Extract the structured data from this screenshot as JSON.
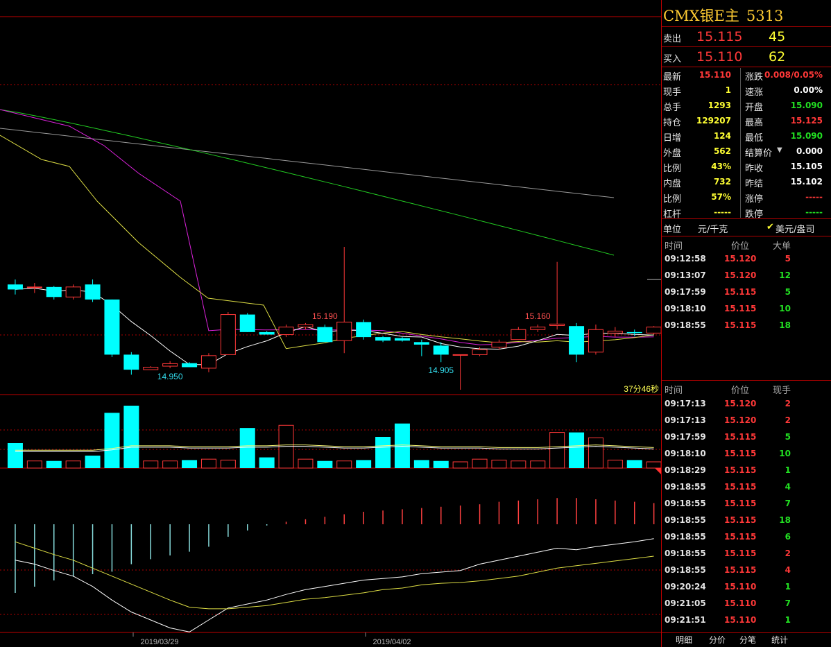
{
  "header": {
    "title": "CMX银E主",
    "code": "5313"
  },
  "quote": {
    "sell": {
      "label": "卖出",
      "price": "15.115",
      "volume": "45"
    },
    "buy": {
      "label": "买入",
      "price": "15.110",
      "volume": "62"
    }
  },
  "stats_left": [
    {
      "label": "最新",
      "value": "15.110",
      "color": "red"
    },
    {
      "label": "现手",
      "value": "1",
      "color": "yel"
    },
    {
      "label": "总手",
      "value": "1293",
      "color": "yel"
    },
    {
      "label": "持仓",
      "value": "129207",
      "color": "yel"
    },
    {
      "label": "日增",
      "value": "124",
      "color": "yel"
    },
    {
      "label": "外盘",
      "value": "562",
      "color": "yel"
    },
    {
      "label": "比例",
      "value": "43%",
      "color": "yel"
    },
    {
      "label": "内盘",
      "value": "732",
      "color": "yel"
    },
    {
      "label": "比例",
      "value": "57%",
      "color": "yel"
    },
    {
      "label": "杠杆",
      "value": "-----",
      "color": "yel"
    }
  ],
  "stats_right": [
    {
      "label": "涨跌",
      "value": "0.008/0.05%",
      "color": "red"
    },
    {
      "label": "速涨",
      "value": "0.00%",
      "color": "wht"
    },
    {
      "label": "开盘",
      "value": "15.090",
      "color": "grn"
    },
    {
      "label": "最高",
      "value": "15.125",
      "color": "red"
    },
    {
      "label": "最低",
      "value": "15.090",
      "color": "grn"
    },
    {
      "label": "结算价",
      "value": "0.000",
      "color": "wht"
    },
    {
      "label": "昨收",
      "value": "15.105",
      "color": "wht"
    },
    {
      "label": "昨结",
      "value": "15.102",
      "color": "wht"
    },
    {
      "label": "涨停",
      "value": "-----",
      "color": "red"
    },
    {
      "label": "跌停",
      "value": "-----",
      "color": "grn"
    }
  ],
  "unit": {
    "label": "单位",
    "option1": "元/千克",
    "option2": "美元/盎司",
    "check": "✔"
  },
  "big_orders": {
    "headers": {
      "time": "时间",
      "price": "价位",
      "vol": "大单"
    },
    "rows": [
      {
        "time": "09:12:58",
        "price": "15.120",
        "vol": "5",
        "color": "red"
      },
      {
        "time": "09:13:07",
        "price": "15.120",
        "vol": "12",
        "color": "grn"
      },
      {
        "time": "09:17:59",
        "price": "15.115",
        "vol": "5",
        "color": "grn"
      },
      {
        "time": "09:18:10",
        "price": "15.115",
        "vol": "10",
        "color": "grn"
      },
      {
        "time": "09:18:55",
        "price": "15.115",
        "vol": "18",
        "color": "grn"
      }
    ]
  },
  "ticks": {
    "headers": {
      "time": "时间",
      "price": "价位",
      "vol": "现手"
    },
    "rows": [
      {
        "time": "09:17:13",
        "price": "15.120",
        "vol": "2",
        "color": "red"
      },
      {
        "time": "09:17:13",
        "price": "15.120",
        "vol": "2",
        "color": "red"
      },
      {
        "time": "09:17:59",
        "price": "15.115",
        "vol": "5",
        "color": "grn"
      },
      {
        "time": "09:18:10",
        "price": "15.115",
        "vol": "10",
        "color": "grn"
      },
      {
        "time": "09:18:29",
        "price": "15.115",
        "vol": "1",
        "color": "grn"
      },
      {
        "time": "09:18:55",
        "price": "15.115",
        "vol": "4",
        "color": "grn"
      },
      {
        "time": "09:18:55",
        "price": "15.115",
        "vol": "7",
        "color": "grn"
      },
      {
        "time": "09:18:55",
        "price": "15.115",
        "vol": "18",
        "color": "grn"
      },
      {
        "time": "09:18:55",
        "price": "15.115",
        "vol": "6",
        "color": "grn"
      },
      {
        "time": "09:18:55",
        "price": "15.115",
        "vol": "2",
        "color": "red"
      },
      {
        "time": "09:18:55",
        "price": "15.115",
        "vol": "4",
        "color": "red"
      },
      {
        "time": "09:20:24",
        "price": "15.110",
        "vol": "1",
        "color": "grn"
      },
      {
        "time": "09:21:05",
        "price": "15.110",
        "vol": "7",
        "color": "grn"
      },
      {
        "time": "09:21:51",
        "price": "15.110",
        "vol": "1",
        "color": "grn"
      }
    ]
  },
  "tabs": [
    "明细",
    "分价",
    "分笔",
    "统计"
  ],
  "colors": {
    "up": "#ff3838",
    "down": "#00ffff",
    "grid": "#b00000",
    "accent": "#ffcc33"
  },
  "chart_data": {
    "type": "candlestick",
    "annotations": [
      {
        "text": "15.190",
        "type": "high",
        "candle": 16
      },
      {
        "text": "15.160",
        "type": "high",
        "candle": 27
      },
      {
        "text": "14.950",
        "type": "low",
        "candle": 8
      },
      {
        "text": "14.905",
        "type": "low",
        "candle": 22
      }
    ],
    "countdown": "37分46秒",
    "dates": [
      "2019/03/29",
      "2019/04/02"
    ],
    "candles": [
      {
        "o": 15.115,
        "h": 15.125,
        "l": 15.095,
        "c": 15.105
      },
      {
        "o": 15.11,
        "h": 15.118,
        "l": 15.098,
        "c": 15.11
      },
      {
        "o": 15.11,
        "h": 15.112,
        "l": 15.085,
        "c": 15.09
      },
      {
        "o": 15.09,
        "h": 15.115,
        "l": 15.085,
        "c": 15.11
      },
      {
        "o": 15.115,
        "h": 15.125,
        "l": 15.08,
        "c": 15.085
      },
      {
        "o": 15.085,
        "h": 15.085,
        "l": 14.97,
        "c": 14.975
      },
      {
        "o": 14.975,
        "h": 14.98,
        "l": 14.935,
        "c": 14.945
      },
      {
        "o": 14.945,
        "h": 14.952,
        "l": 14.945,
        "c": 14.95
      },
      {
        "o": 14.952,
        "h": 14.962,
        "l": 14.948,
        "c": 14.957
      },
      {
        "o": 14.958,
        "h": 14.96,
        "l": 14.95,
        "c": 14.95
      },
      {
        "o": 14.948,
        "h": 14.978,
        "l": 14.94,
        "c": 14.973
      },
      {
        "o": 14.975,
        "h": 15.06,
        "l": 14.975,
        "c": 15.055
      },
      {
        "o": 15.055,
        "h": 15.058,
        "l": 15.02,
        "c": 15.02
      },
      {
        "o": 15.02,
        "h": 15.022,
        "l": 15.015,
        "c": 15.015
      },
      {
        "o": 15.015,
        "h": 15.035,
        "l": 15.01,
        "c": 15.03
      },
      {
        "o": 15.03,
        "h": 15.038,
        "l": 15.025,
        "c": 15.035
      },
      {
        "o": 15.03,
        "h": 15.035,
        "l": 15.0,
        "c": 15.0
      },
      {
        "o": 15.003,
        "h": 15.19,
        "l": 14.978,
        "c": 15.04
      },
      {
        "o": 15.04,
        "h": 15.045,
        "l": 15.005,
        "c": 15.01
      },
      {
        "o": 15.01,
        "h": 15.012,
        "l": 15.0,
        "c": 15.003
      },
      {
        "o": 15.008,
        "h": 15.01,
        "l": 15.001,
        "c": 15.003
      },
      {
        "o": 15.0,
        "h": 15.005,
        "l": 14.972,
        "c": 14.995
      },
      {
        "o": 14.993,
        "h": 15.0,
        "l": 14.96,
        "c": 14.975
      },
      {
        "o": 14.975,
        "h": 14.975,
        "l": 14.905,
        "c": 14.975
      },
      {
        "o": 14.975,
        "h": 14.99,
        "l": 14.972,
        "c": 14.985
      },
      {
        "o": 14.99,
        "h": 15.005,
        "l": 14.985,
        "c": 15.0
      },
      {
        "o": 15.005,
        "h": 15.03,
        "l": 15.005,
        "c": 15.025
      },
      {
        "o": 15.025,
        "h": 15.035,
        "l": 15.02,
        "c": 15.03
      },
      {
        "o": 15.033,
        "h": 15.16,
        "l": 15.025,
        "c": 15.036
      },
      {
        "o": 15.032,
        "h": 15.038,
        "l": 14.96,
        "c": 14.975
      },
      {
        "o": 14.98,
        "h": 15.035,
        "l": 14.975,
        "c": 15.025
      },
      {
        "o": 15.018,
        "h": 15.03,
        "l": 15.01,
        "c": 15.022
      },
      {
        "o": 15.02,
        "h": 15.025,
        "l": 15.012,
        "c": 15.018
      },
      {
        "o": 15.018,
        "h": 15.032,
        "l": 15.015,
        "c": 15.03
      }
    ],
    "volumes": [
      28,
      8,
      8,
      8,
      14,
      62,
      70,
      8,
      8,
      9,
      10,
      9,
      45,
      12,
      48,
      10,
      8,
      8,
      9,
      35,
      50,
      9,
      8,
      7,
      10,
      9,
      8,
      8,
      40,
      40,
      34,
      9,
      9,
      7
    ],
    "vol_ma": [
      20,
      20,
      20,
      20,
      20,
      22,
      25,
      25,
      25,
      24,
      24,
      24,
      25,
      25,
      26,
      26,
      25,
      24,
      24,
      25,
      26,
      25,
      24,
      24,
      24,
      23,
      23,
      23,
      24,
      25,
      26,
      25,
      24,
      23
    ],
    "macd_hist": [
      -55,
      -50,
      -45,
      -42,
      -40,
      -38,
      -32,
      -28,
      -25,
      -22,
      -18,
      -10,
      -5,
      -1,
      2,
      4,
      6,
      8,
      10,
      11,
      12,
      13,
      14,
      15,
      16,
      18,
      19,
      20,
      21,
      21,
      20,
      19,
      18,
      17
    ],
    "macd_dif": [
      -45,
      -50,
      -58,
      -65,
      -78,
      -95,
      -110,
      -120,
      -130,
      -135,
      -120,
      -105,
      -100,
      -95,
      -88,
      -82,
      -78,
      -74,
      -70,
      -68,
      -66,
      -62,
      -60,
      -58,
      -50,
      -45,
      -40,
      -35,
      -30,
      -32,
      -28,
      -25,
      -22,
      -18
    ],
    "macd_dea": [
      -22,
      -30,
      -38,
      -45,
      -55,
      -65,
      -75,
      -85,
      -95,
      -104,
      -106,
      -106,
      -104,
      -102,
      -98,
      -94,
      -92,
      -89,
      -86,
      -82,
      -80,
      -76,
      -74,
      -73,
      -71,
      -68,
      -65,
      -60,
      -55,
      -52,
      -49,
      -46,
      -43,
      -40
    ]
  }
}
